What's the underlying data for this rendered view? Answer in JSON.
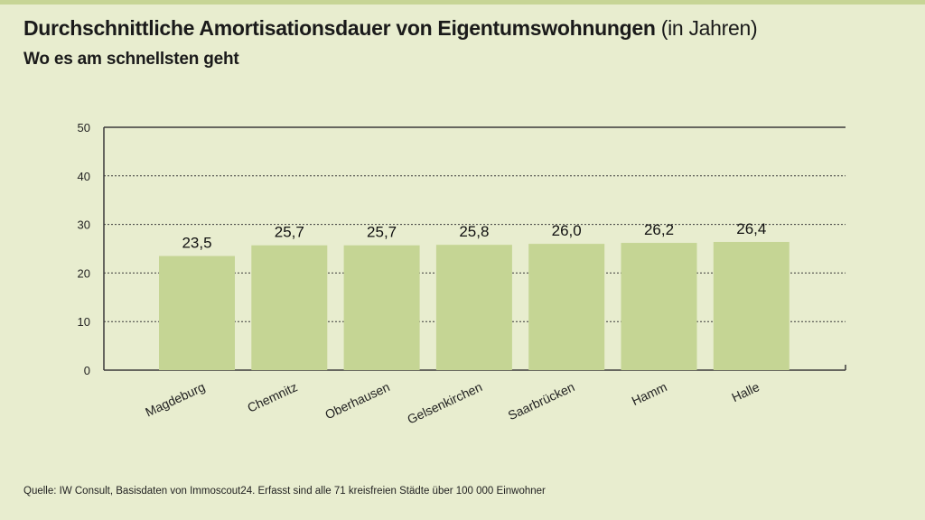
{
  "header": {
    "title": "Durchschnittliche Amortisationsdauer von Eigentumswohnungen",
    "title_unit": "(in Jahren)",
    "subtitle": "Wo es am schnellsten geht"
  },
  "footer": {
    "source": "Quelle: IW Consult, Basisdaten von Immoscout24. Erfasst sind alle 71 kreisfreien Städte über 100 000 Einwohner"
  },
  "colors": {
    "background": "#e8edcf",
    "bar": "#c5d594",
    "axis": "#3a3a3a",
    "accent_bar": "#c7d596"
  },
  "chart_data": {
    "type": "bar",
    "title": "Durchschnittliche Amortisationsdauer von Eigentumswohnungen (in Jahren)",
    "subtitle": "Wo es am schnellsten geht",
    "categories": [
      "Magdeburg",
      "Chemnitz",
      "Oberhausen",
      "Gelsenkirchen",
      "Saarbrücken",
      "Hamm",
      "Halle"
    ],
    "values": [
      23.5,
      25.7,
      25.7,
      25.8,
      26.0,
      26.2,
      26.4
    ],
    "value_labels": [
      "23,5",
      "25,7",
      "25,7",
      "25,8",
      "26,0",
      "26,2",
      "26,4"
    ],
    "ylim": [
      0,
      50
    ],
    "yticks": [
      0,
      10,
      20,
      30,
      40,
      50
    ],
    "xlabel": "",
    "ylabel": "",
    "grid": true,
    "grid_style": "dotted",
    "legend": false
  }
}
